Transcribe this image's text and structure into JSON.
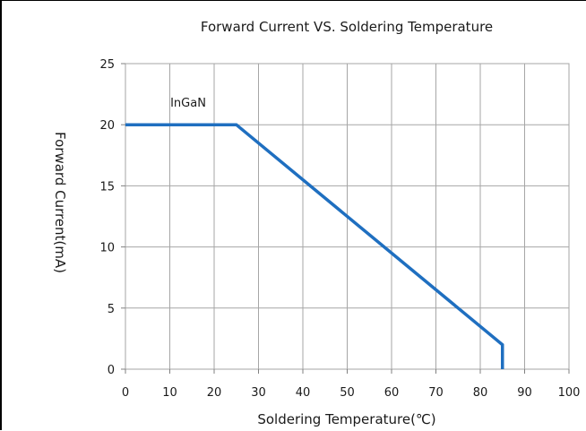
{
  "chart_data": {
    "type": "line",
    "title": "Forward Current VS. Soldering Temperature",
    "xlabel": "Soldering Temperature(℃)",
    "ylabel": "Forward  Current(mA)",
    "xlim": [
      0,
      100
    ],
    "ylim": [
      0,
      25
    ],
    "xticks": [
      "0",
      "10",
      "20",
      "30",
      "40",
      "50",
      "60",
      "70",
      "80",
      "90",
      "100"
    ],
    "yticks": [
      "0",
      "5",
      "10",
      "15",
      "20",
      "25"
    ],
    "grid": true,
    "series": [
      {
        "name": "InGaN",
        "color": "#1f6fc0",
        "x": [
          0,
          25,
          85,
          85
        ],
        "y": [
          20,
          20,
          2,
          0
        ]
      }
    ]
  }
}
